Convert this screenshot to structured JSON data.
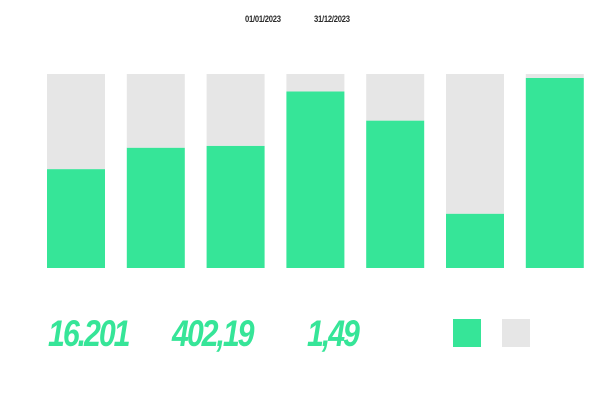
{
  "date_range": {
    "start": "01/01/2023",
    "end": "31/12/2023"
  },
  "kpis": [
    {
      "value": "16.201"
    },
    {
      "value": "402,19"
    },
    {
      "value": "1,49"
    }
  ],
  "legend": [
    {
      "color": "#36e598"
    },
    {
      "color": "#e6e6e6"
    }
  ],
  "chart_data": {
    "type": "bar",
    "stacked": true,
    "categories": [
      "",
      "",
      "",
      "",
      "",
      "",
      ""
    ],
    "series": [
      {
        "color": "#36e598",
        "values": [
          51,
          62,
          63,
          91,
          76,
          28,
          98
        ]
      },
      {
        "color": "#e6e6e6",
        "values": [
          49,
          38,
          37,
          9,
          24,
          72,
          2
        ]
      }
    ],
    "ylim": [
      0,
      100
    ],
    "grid": false
  }
}
